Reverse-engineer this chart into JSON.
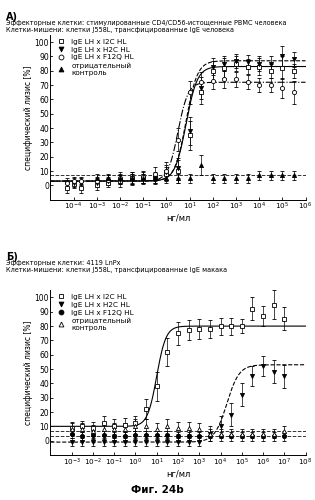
{
  "panel_A": {
    "title_line1": "Эффекторные клетки: стимулированные CD4/CD56-истощенные PBMC человека",
    "title_line2": "Клетки-мишени: клетки J558L, трансфицированные IgE человека",
    "panel_label": "A)",
    "xlabel": "нг/мл",
    "ylabel": "специфический лизис [%]",
    "xlim_log": [
      -5,
      6
    ],
    "ylim": [
      -10,
      105
    ],
    "yticks": [
      0,
      10,
      20,
      30,
      40,
      50,
      60,
      70,
      80,
      90,
      100
    ],
    "xtick_vals": [
      -4,
      -3,
      -2,
      -1,
      0,
      1,
      2,
      3,
      4,
      5,
      6
    ],
    "series": {
      "I2C": {
        "label": "IgE LH x I2C HL",
        "marker": "s",
        "filled": false,
        "linestyle": "-",
        "x": [
          -4.3,
          -4.0,
          -3.7,
          -3.0,
          -2.5,
          -2.0,
          -1.5,
          -1.0,
          -0.5,
          0,
          0.5,
          1.0,
          1.5,
          2.0,
          2.5,
          3.0,
          3.5,
          4.0,
          4.5,
          5.0,
          5.5
        ],
        "y": [
          -2,
          1,
          -2,
          0,
          2,
          3,
          5,
          5,
          5,
          8,
          10,
          35,
          65,
          80,
          82,
          85,
          83,
          83,
          80,
          82,
          80
        ],
        "yerr": [
          3,
          3,
          3,
          3,
          3,
          4,
          4,
          4,
          4,
          5,
          8,
          10,
          8,
          7,
          7,
          5,
          5,
          6,
          5,
          8,
          5
        ],
        "ec50_log": 0.85,
        "top": 83,
        "bottom": 3,
        "hill": 1.8
      },
      "H2C": {
        "label": "IgE LH x H2C HL",
        "marker": "v",
        "filled": true,
        "linestyle": "--",
        "x": [
          -4.3,
          -4.0,
          -3.7,
          -3.0,
          -2.5,
          -2.0,
          -1.5,
          -1.0,
          -0.5,
          0,
          0.5,
          1.0,
          1.5,
          2.0,
          2.5,
          3.0,
          3.5,
          4.0,
          4.5,
          5.0,
          5.5
        ],
        "y": [
          1,
          2,
          2,
          2,
          3,
          4,
          4,
          5,
          5,
          9,
          12,
          38,
          68,
          83,
          85,
          87,
          86,
          85,
          85,
          90,
          88
        ],
        "yerr": [
          3,
          3,
          3,
          3,
          3,
          3,
          4,
          3,
          3,
          5,
          7,
          10,
          8,
          6,
          5,
          5,
          5,
          5,
          5,
          7,
          5
        ],
        "ec50_log": 0.85,
        "top": 87,
        "bottom": 3,
        "hill": 1.8
      },
      "F12Q": {
        "label": "IgE LH x F12Q HL",
        "marker": "o",
        "filled": false,
        "linestyle": "-.",
        "x": [
          -4.3,
          -4.0,
          -3.7,
          -3.0,
          -2.5,
          -2.0,
          -1.5,
          -1.0,
          -0.5,
          0,
          0.5,
          1.0,
          1.5,
          2.0,
          2.5,
          3.0,
          3.5,
          4.0,
          4.5,
          5.0,
          5.5
        ],
        "y": [
          2,
          3,
          3,
          3,
          4,
          5,
          5,
          6,
          8,
          10,
          32,
          65,
          72,
          73,
          74,
          74,
          72,
          70,
          70,
          68,
          65
        ],
        "yerr": [
          3,
          3,
          3,
          3,
          3,
          4,
          4,
          4,
          5,
          6,
          8,
          8,
          7,
          6,
          6,
          5,
          5,
          5,
          5,
          7,
          8
        ],
        "ec50_log": 0.5,
        "top": 72,
        "bottom": 3,
        "hill": 2.0
      },
      "neg": {
        "label": "отрицательный\nконтроль",
        "marker": "^",
        "filled": true,
        "linestyle": null,
        "x": [
          -3.0,
          -2.5,
          -2.0,
          -1.5,
          -1.0,
          -0.5,
          0,
          0.5,
          1.0,
          1.5,
          2.0,
          2.5,
          3.0,
          3.5,
          4.0,
          4.5,
          5.0,
          5.5
        ],
        "y": [
          5,
          5,
          5,
          5,
          5,
          5,
          5,
          5,
          5,
          14,
          5,
          5,
          5,
          5,
          7,
          7,
          7,
          7
        ],
        "yerr": [
          3,
          3,
          3,
          3,
          3,
          3,
          3,
          3,
          3,
          7,
          3,
          3,
          3,
          3,
          3,
          3,
          3,
          3
        ],
        "ec50_log": null,
        "top": null,
        "bottom": null,
        "hill": null,
        "flat_y": 7
      }
    }
  },
  "panel_B": {
    "title_line1": "Эффекторные клетки: 4119 LnPx",
    "title_line2": "Клетки-мишени: клетки J558L, трансфицированные IgE макака",
    "panel_label": "Б)",
    "xlabel": "нг/мл",
    "ylabel": "специфический лизис [%]",
    "xlim_log": [
      -4,
      8
    ],
    "ylim": [
      -10,
      105
    ],
    "yticks": [
      0,
      10,
      20,
      30,
      40,
      50,
      60,
      70,
      80,
      90,
      100
    ],
    "xtick_vals": [
      -3,
      -2,
      -1,
      0,
      1,
      2,
      3,
      4,
      5,
      6,
      7,
      8
    ],
    "series": {
      "I2C": {
        "label": "IgE LH x I2C HL",
        "marker": "s",
        "filled": false,
        "linestyle": "-",
        "x": [
          -3.0,
          -2.5,
          -2.0,
          -1.5,
          -1.0,
          -0.5,
          0,
          0.5,
          1.0,
          1.5,
          2.0,
          2.5,
          3.0,
          3.5,
          4.0,
          4.5,
          5.0,
          5.5,
          6.0,
          6.5,
          7.0
        ],
        "y": [
          9,
          10,
          9,
          12,
          10,
          11,
          12,
          22,
          38,
          62,
          75,
          77,
          78,
          78,
          80,
          80,
          80,
          92,
          87,
          95,
          85
        ],
        "yerr": [
          4,
          4,
          4,
          5,
          5,
          5,
          5,
          7,
          10,
          10,
          8,
          7,
          7,
          6,
          6,
          6,
          5,
          8,
          7,
          10,
          8
        ],
        "ec50_log": 1.0,
        "top": 80,
        "bottom": 10,
        "hill": 2.0
      },
      "H2C": {
        "label": "IgE LH x H2C HL",
        "marker": "v",
        "filled": true,
        "linestyle": "--",
        "x": [
          -3.0,
          -2.5,
          -2.0,
          -1.5,
          -1.0,
          -0.5,
          0,
          0.5,
          1.0,
          1.5,
          2.0,
          2.5,
          3.0,
          3.5,
          4.0,
          4.5,
          5.0,
          5.5,
          6.0,
          6.5,
          7.0
        ],
        "y": [
          -1,
          -1,
          -1,
          -1,
          -1,
          -1,
          -1,
          -1,
          -1,
          -1,
          -1,
          -1,
          -1,
          5,
          10,
          18,
          32,
          45,
          52,
          48,
          45
        ],
        "yerr": [
          3,
          3,
          3,
          3,
          3,
          3,
          3,
          3,
          3,
          3,
          3,
          3,
          3,
          5,
          7,
          8,
          8,
          7,
          7,
          8,
          8
        ],
        "ec50_log": 4.3,
        "top": 53,
        "bottom": -1,
        "hill": 1.5
      },
      "F12Q": {
        "label": "IgE LH x F12Q HL",
        "marker": "o",
        "filled": true,
        "linestyle": null,
        "x": [
          -3.0,
          -2.5,
          -2.0,
          -1.5,
          -1.0,
          -0.5,
          0,
          0.5,
          1.0,
          1.5,
          2.0,
          2.5,
          3.0,
          3.5,
          4.0,
          4.5,
          5.0,
          5.5,
          6.0,
          6.5,
          7.0
        ],
        "y": [
          5,
          3,
          4,
          4,
          3,
          3,
          4,
          4,
          4,
          4,
          3,
          3,
          3,
          3,
          3,
          3,
          3,
          3,
          3,
          3,
          3
        ],
        "yerr": [
          3,
          3,
          3,
          3,
          3,
          3,
          3,
          3,
          3,
          3,
          3,
          3,
          3,
          3,
          3,
          3,
          3,
          3,
          3,
          3,
          3
        ],
        "ec50_log": null,
        "top": null,
        "bottom": null,
        "hill": null,
        "flat_y": 3
      },
      "neg": {
        "label": "отрицательный\nконтроль",
        "marker": "^",
        "filled": false,
        "linestyle": null,
        "x": [
          -3.0,
          -2.5,
          -2.0,
          -1.5,
          -1.0,
          -0.5,
          0,
          0.5,
          1.0,
          1.5,
          2.0,
          2.5,
          3.0,
          3.5,
          4.0,
          4.5,
          5.0,
          5.5,
          6.0,
          6.5,
          7.0
        ],
        "y": [
          8,
          8,
          7,
          8,
          8,
          8,
          10,
          10,
          8,
          10,
          9,
          9,
          8,
          5,
          5,
          5,
          5,
          5,
          5,
          5,
          7
        ],
        "yerr": [
          4,
          4,
          4,
          4,
          4,
          4,
          5,
          5,
          4,
          5,
          4,
          4,
          4,
          3,
          3,
          3,
          3,
          3,
          3,
          3,
          3
        ],
        "ec50_log": null,
        "top": null,
        "bottom": null,
        "hill": null,
        "flat_y": 7
      }
    }
  },
  "fig_label": "Фиг. 24b",
  "background_color": "#ffffff",
  "font_size": 5.5
}
